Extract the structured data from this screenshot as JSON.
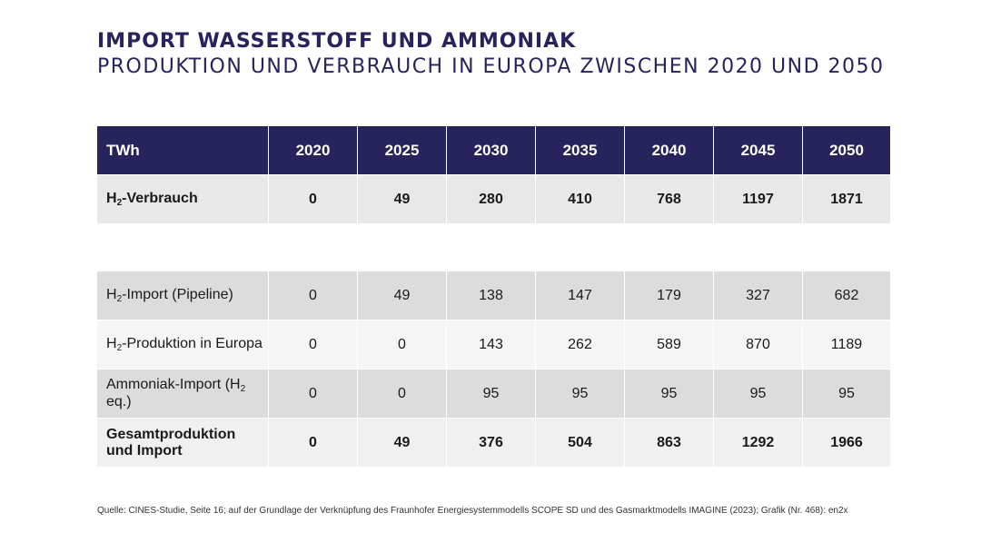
{
  "title": "IMPORT WASSERSTOFF UND AMMONIAK",
  "subtitle": "PRODUKTION UND VERBRAUCH IN EUROPA ZWISCHEN 2020 UND 2050",
  "chart_data": {
    "type": "table",
    "header": {
      "unit": "TWh",
      "years": [
        "2020",
        "2025",
        "2030",
        "2035",
        "2040",
        "2045",
        "2050"
      ]
    },
    "consumption": {
      "label_pre": "H",
      "label_sub": "2",
      "label_post": "-Verbrauch",
      "values": [
        "0",
        "49",
        "280",
        "410",
        "768",
        "1197",
        "1871"
      ]
    },
    "rows": [
      {
        "label_pre": "H",
        "label_sub": "2",
        "label_post": "-Import (Pipeline)",
        "values": [
          "0",
          "49",
          "138",
          "147",
          "179",
          "327",
          "682"
        ]
      },
      {
        "label_pre": "H",
        "label_sub": "2",
        "label_post": "-Produktion in Europa",
        "values": [
          "0",
          "0",
          "143",
          "262",
          "589",
          "870",
          "1189"
        ]
      },
      {
        "label_pre": "Ammoniak-Import (H",
        "label_sub": "2",
        "label_post": " eq.)",
        "values": [
          "0",
          "0",
          "95",
          "95",
          "95",
          "95",
          "95"
        ]
      }
    ],
    "total": {
      "label_line1": "Gesamtproduktion",
      "label_line2": "und Import",
      "values": [
        "0",
        "49",
        "376",
        "504",
        "863",
        "1292",
        "1966"
      ]
    }
  },
  "source": "Quelle: CINES-Studie, Seite 16; auf der Grundlage der Verknüpfung des Fraunhofer Energiesystemmodells SCOPE SD und des Gasmarktmodells IMAGINE (2023); Grafik (Nr. 468): en2x",
  "colors": {
    "header_bg": "#27235d",
    "title": "#27235d"
  }
}
